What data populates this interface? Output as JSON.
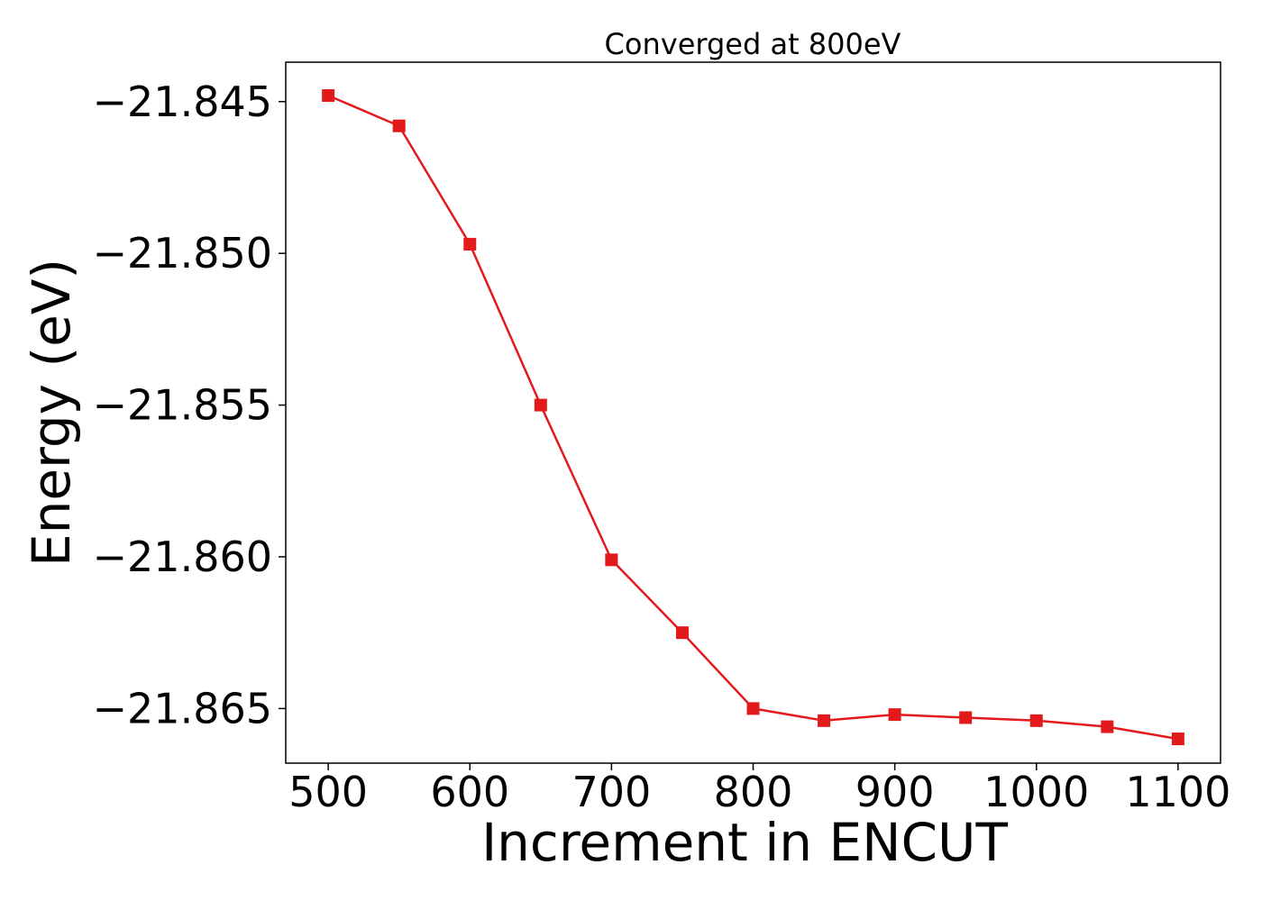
{
  "chart_data": {
    "type": "line",
    "title": "Converged at 800eV",
    "xlabel": "Increment in ENCUT",
    "ylabel": "Energy (eV)",
    "xlim": [
      470,
      1130
    ],
    "ylim": [
      -21.8668,
      -21.8437
    ],
    "xticks": [
      500,
      600,
      700,
      800,
      900,
      1000,
      1100
    ],
    "xtick_labels": [
      "500",
      "600",
      "700",
      "800",
      "900",
      "1000",
      "1100"
    ],
    "yticks": [
      -21.845,
      -21.85,
      -21.855,
      -21.86,
      -21.865
    ],
    "ytick_labels": [
      "−21.845",
      "−21.850",
      "−21.855",
      "−21.860",
      "−21.865"
    ],
    "grid": false,
    "series": [
      {
        "color": "#e31a1c",
        "marker": "square",
        "x": [
          500,
          550,
          600,
          650,
          700,
          750,
          800,
          850,
          900,
          950,
          1000,
          1050,
          1100
        ],
        "y": [
          -21.8448,
          -21.8458,
          -21.8497,
          -21.855,
          -21.8601,
          -21.8625,
          -21.865,
          -21.8654,
          -21.8652,
          -21.8653,
          -21.8654,
          -21.8656,
          -21.866
        ]
      }
    ]
  }
}
